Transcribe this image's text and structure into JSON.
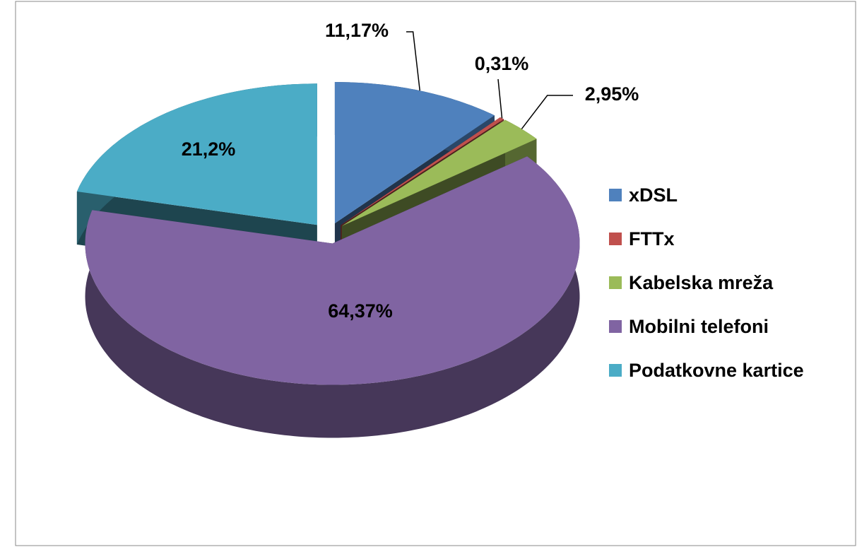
{
  "chart_data": {
    "type": "pie",
    "categories": [
      "xDSL",
      "FTTx",
      "Kabelska mreža",
      "Mobilni telefoni",
      "Podatkovne kartice"
    ],
    "values": [
      11.17,
      0.31,
      2.95,
      64.37,
      21.2
    ],
    "value_labels": [
      "11,17%",
      "0,31%",
      "2,95%",
      "64,37%",
      "21,2%"
    ],
    "colors": [
      "#4f81bd",
      "#c0504d",
      "#9bbb59",
      "#8064a2",
      "#4bacc6"
    ],
    "legend": "right"
  }
}
